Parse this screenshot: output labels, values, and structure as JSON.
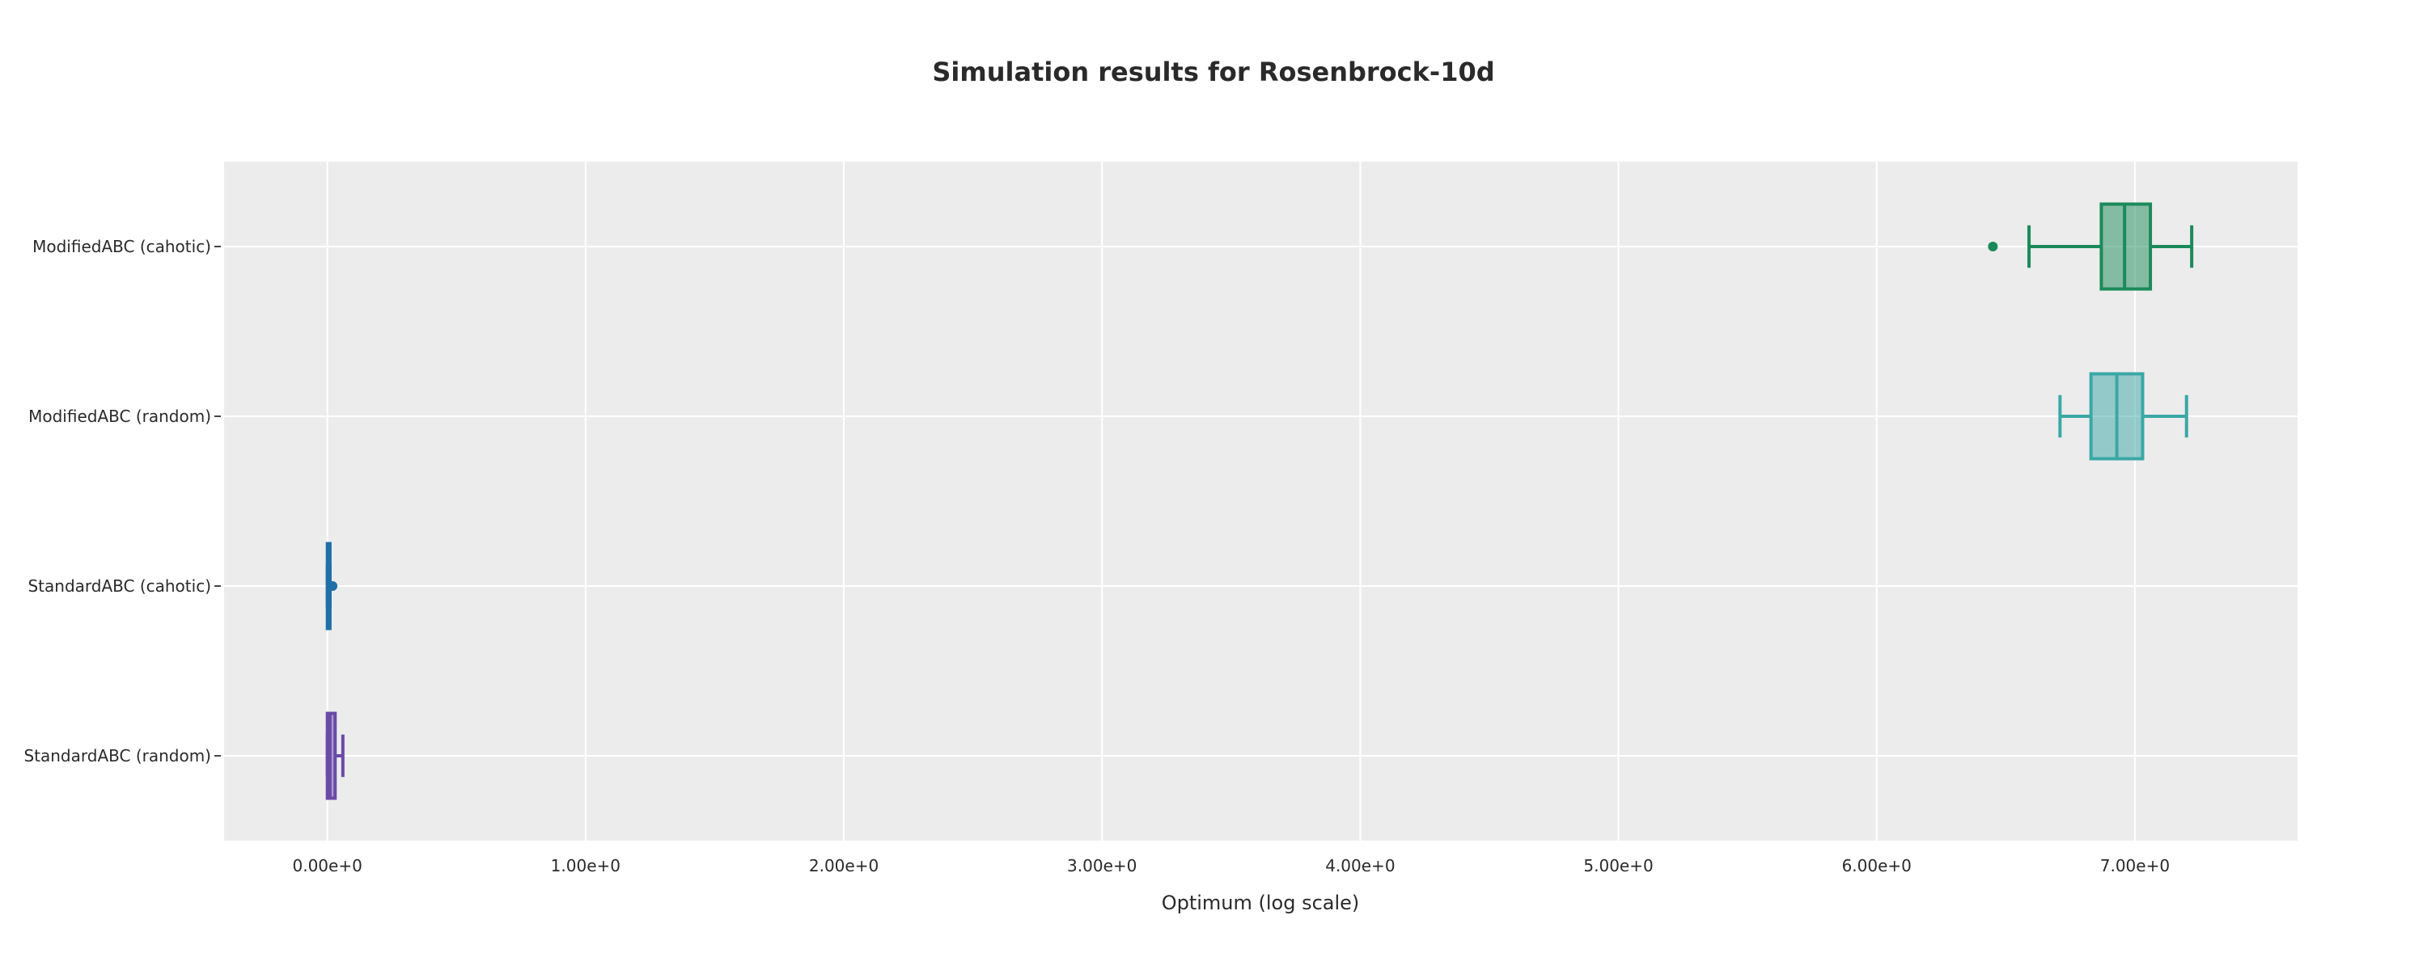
{
  "chart_data": {
    "type": "box",
    "orientation": "horizontal",
    "title": "Simulation results for Rosenbrock-10d",
    "xlabel": "Optimum (log scale)",
    "ylabel": "",
    "xlim": [
      -0.4,
      7.63
    ],
    "x_ticks": [
      0,
      1,
      2,
      3,
      4,
      5,
      6,
      7
    ],
    "x_tick_labels": [
      "0.00e+0",
      "1.00e+0",
      "2.00e+0",
      "3.00e+0",
      "4.00e+0",
      "5.00e+0",
      "6.00e+0",
      "7.00e+0"
    ],
    "grid": true,
    "legend": false,
    "categories": [
      "ModifiedABC (cahotic)",
      "ModifiedABC (random)",
      "StandardABC (cahotic)",
      "StandardABC (random)"
    ],
    "series": [
      {
        "category": "ModifiedABC (cahotic)",
        "color": "#1b8a5a",
        "min": 6.59,
        "q1": 6.87,
        "median": 6.96,
        "q3": 7.06,
        "max": 7.22,
        "outliers": [
          6.45
        ]
      },
      {
        "category": "ModifiedABC (random)",
        "color": "#3aa8a6",
        "min": 6.71,
        "q1": 6.83,
        "median": 6.93,
        "q3": 7.03,
        "max": 7.2,
        "outliers": []
      },
      {
        "category": "StandardABC (cahotic)",
        "color": "#1f6fa8",
        "min": 0.0,
        "q1": 0.0,
        "median": 0.005,
        "q3": 0.01,
        "max": 0.01,
        "outliers": [
          0.02
        ]
      },
      {
        "category": "StandardABC (random)",
        "color": "#6a4aa8",
        "min": 0.0,
        "q1": 0.0,
        "median": 0.01,
        "q3": 0.03,
        "max": 0.06,
        "outliers": []
      }
    ]
  }
}
